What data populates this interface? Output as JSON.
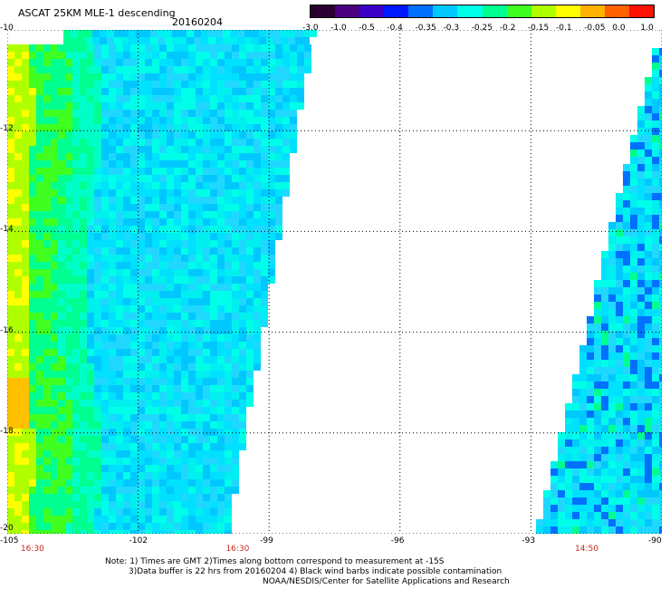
{
  "header": {
    "title": "ASCAT 25KM MLE-1 descending",
    "date": "20160204"
  },
  "colorbar": {
    "labels": [
      "-3.0",
      "-1.0",
      "-0.5",
      "-0.4",
      "-0.35",
      "-0.3",
      "-0.25",
      "-0.2",
      "-0.15",
      "-0.1",
      "-0.05",
      "0.0",
      "1.0"
    ],
    "colors": [
      "#2a0030",
      "#4a0080",
      "#3a00c8",
      "#0018ff",
      "#0070ff",
      "#00c8ff",
      "#00ffe8",
      "#00ff90",
      "#40ff20",
      "#b0ff00",
      "#ffff00",
      "#ffb000",
      "#ff6000",
      "#ff1000"
    ]
  },
  "map": {
    "latitudes": [
      "-10",
      "-12",
      "-14",
      "-16",
      "-18",
      "-20"
    ],
    "longitudes": [
      "-105",
      "-102",
      "-99",
      "-96",
      "-93",
      "-90"
    ],
    "times": [
      {
        "label": "16:30",
        "lon": -104.4
      },
      {
        "label": "16:30",
        "lon": -99.7
      },
      {
        "label": "14:50",
        "lon": -91.7
      }
    ],
    "extent": {
      "lon_min": -105,
      "lon_max": -90,
      "lat_min": -20,
      "lat_max": -10
    },
    "swaths": [
      {
        "side": "west",
        "description_colors": [
          "#00ffe8",
          "#00ff90",
          "#b0ff00"
        ]
      },
      {
        "side": "east",
        "description_colors": [
          "#00ffe8",
          "#0070ff"
        ]
      }
    ]
  },
  "notes": {
    "line1": "Note: 1) Times are GMT 2)Times along bottom correspond to measurement at -15S",
    "line2": "3)Data buffer is 22 hrs from 20160204 4) Black wind barbs indicate possible contamination",
    "line3": "NOAA/NESDIS/Center for Satellite Applications and Research"
  }
}
